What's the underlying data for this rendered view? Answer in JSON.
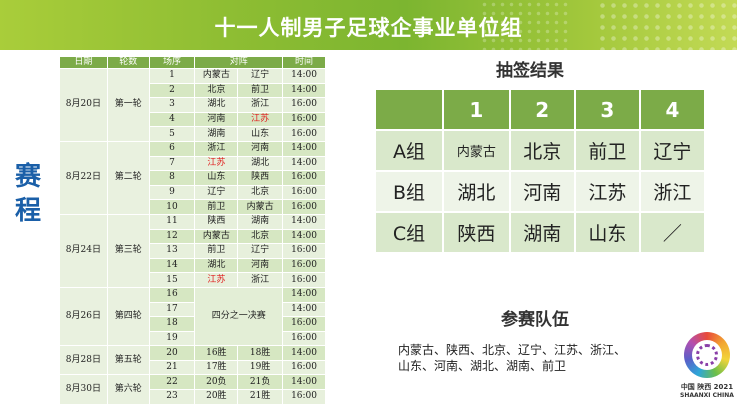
{
  "title": "十一人制男子足球企事业单位组",
  "side_label": "赛程",
  "schedule": {
    "headers": [
      "日期",
      "轮数",
      "场序",
      "对阵",
      "时间"
    ],
    "days": [
      {
        "date": "8月20日",
        "round": "第一轮",
        "matches": [
          {
            "no": "1",
            "t1": "内蒙古",
            "t2": "辽宁",
            "time": "14:00"
          },
          {
            "no": "2",
            "t1": "北京",
            "t2": "前卫",
            "time": "14:00"
          },
          {
            "no": "3",
            "t1": "湖北",
            "t2": "浙江",
            "time": "16:00"
          },
          {
            "no": "4",
            "t1": "河南",
            "t2": "江苏",
            "time": "16:00"
          },
          {
            "no": "5",
            "t1": "湖南",
            "t2": "山东",
            "time": "16:00"
          }
        ]
      },
      {
        "date": "8月22日",
        "round": "第二轮",
        "matches": [
          {
            "no": "6",
            "t1": "浙江",
            "t2": "河南",
            "time": "14:00"
          },
          {
            "no": "7",
            "t1": "江苏",
            "t2": "湖北",
            "time": "14:00"
          },
          {
            "no": "8",
            "t1": "山东",
            "t2": "陕西",
            "time": "16:00"
          },
          {
            "no": "9",
            "t1": "辽宁",
            "t2": "北京",
            "time": "16:00"
          },
          {
            "no": "10",
            "t1": "前卫",
            "t2": "内蒙古",
            "time": "16:00"
          }
        ]
      },
      {
        "date": "8月24日",
        "round": "第三轮",
        "matches": [
          {
            "no": "11",
            "t1": "陕西",
            "t2": "湖南",
            "time": "14:00"
          },
          {
            "no": "12",
            "t1": "内蒙古",
            "t2": "北京",
            "time": "14:00"
          },
          {
            "no": "13",
            "t1": "前卫",
            "t2": "辽宁",
            "time": "16:00"
          },
          {
            "no": "14",
            "t1": "湖北",
            "t2": "河南",
            "time": "16:00"
          },
          {
            "no": "15",
            "t1": "江苏",
            "t2": "浙江",
            "time": "16:00"
          }
        ]
      },
      {
        "date": "8月26日",
        "round": "第四轮",
        "qf_label": "四分之一决赛",
        "matches": [
          {
            "no": "16",
            "time": "14:00"
          },
          {
            "no": "17",
            "time": "14:00"
          },
          {
            "no": "18",
            "time": "16:00"
          },
          {
            "no": "19",
            "time": "16:00"
          }
        ]
      },
      {
        "date": "8月28日",
        "round": "第五轮",
        "matches": [
          {
            "no": "20",
            "t1": "16胜",
            "t2": "18胜",
            "time": "14:00"
          },
          {
            "no": "21",
            "t1": "17胜",
            "t2": "19胜",
            "time": "16:00"
          }
        ]
      },
      {
        "date": "8月30日",
        "round": "第六轮",
        "matches": [
          {
            "no": "22",
            "t1": "20负",
            "t2": "21负",
            "time": "14:00"
          },
          {
            "no": "23",
            "t1": "20胜",
            "t2": "21胜",
            "time": "16:00"
          }
        ]
      }
    ]
  },
  "draw": {
    "title": "抽签结果",
    "columns": [
      "1",
      "2",
      "3",
      "4"
    ],
    "rows": [
      {
        "label": "A组",
        "teams": [
          "内蒙古",
          "北京",
          "前卫",
          "辽宁"
        ]
      },
      {
        "label": "B组",
        "teams": [
          "湖北",
          "河南",
          "江苏",
          "浙江"
        ]
      },
      {
        "label": "C组",
        "teams": [
          "陕西",
          "湖南",
          "山东",
          "／"
        ]
      }
    ]
  },
  "teams": {
    "title": "参赛队伍",
    "line1": "内蒙古、陕西、北京、辽宁、江苏、浙江、",
    "line2": "山东、河南、湖北、湖南、前卫"
  },
  "logo": {
    "line1": "中国 陕西 2021",
    "line2": "SHAANXI CHINA"
  },
  "colors": {
    "accent_green": "#7cab48",
    "highlight_red": "#e02020",
    "side_label_blue": "#1a5fa8"
  }
}
